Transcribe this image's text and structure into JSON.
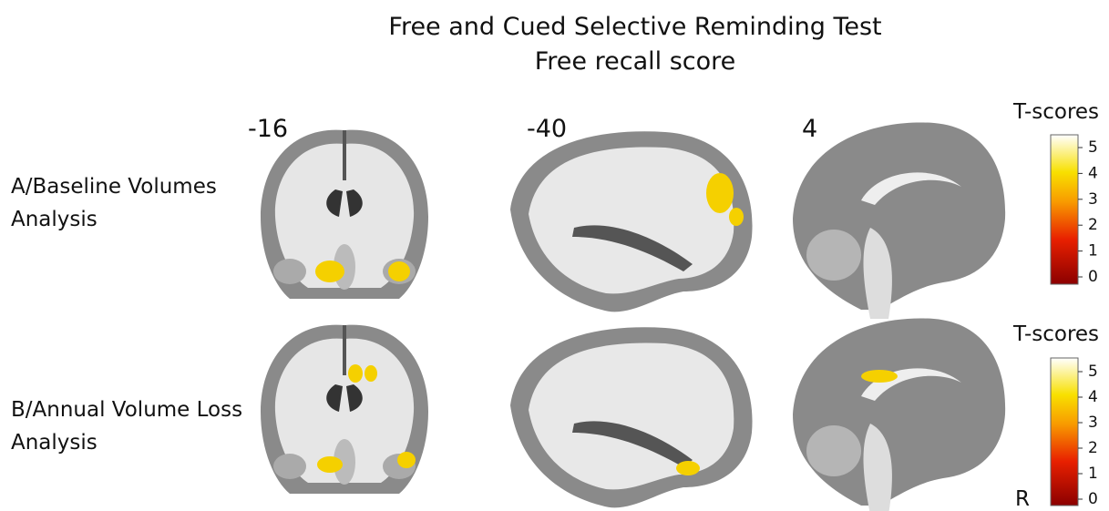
{
  "header": {
    "title": "Free and Cued Selective Reminding Test",
    "subtitle": "Free recall score"
  },
  "slices": [
    "-16",
    "-40",
    "4"
  ],
  "rows": [
    {
      "label": [
        "A/Baseline Volumes",
        "Analysis"
      ]
    },
    {
      "label": [
        "B/Annual Volume Loss",
        "Analysis"
      ]
    }
  ],
  "colorbars": [
    {
      "title": "T-scores",
      "ticks": [
        0,
        1,
        2,
        3,
        4,
        5
      ]
    },
    {
      "title": "T-scores",
      "ticks": [
        0,
        1,
        2,
        3,
        4,
        5
      ]
    }
  ],
  "orientation_label": "R"
}
